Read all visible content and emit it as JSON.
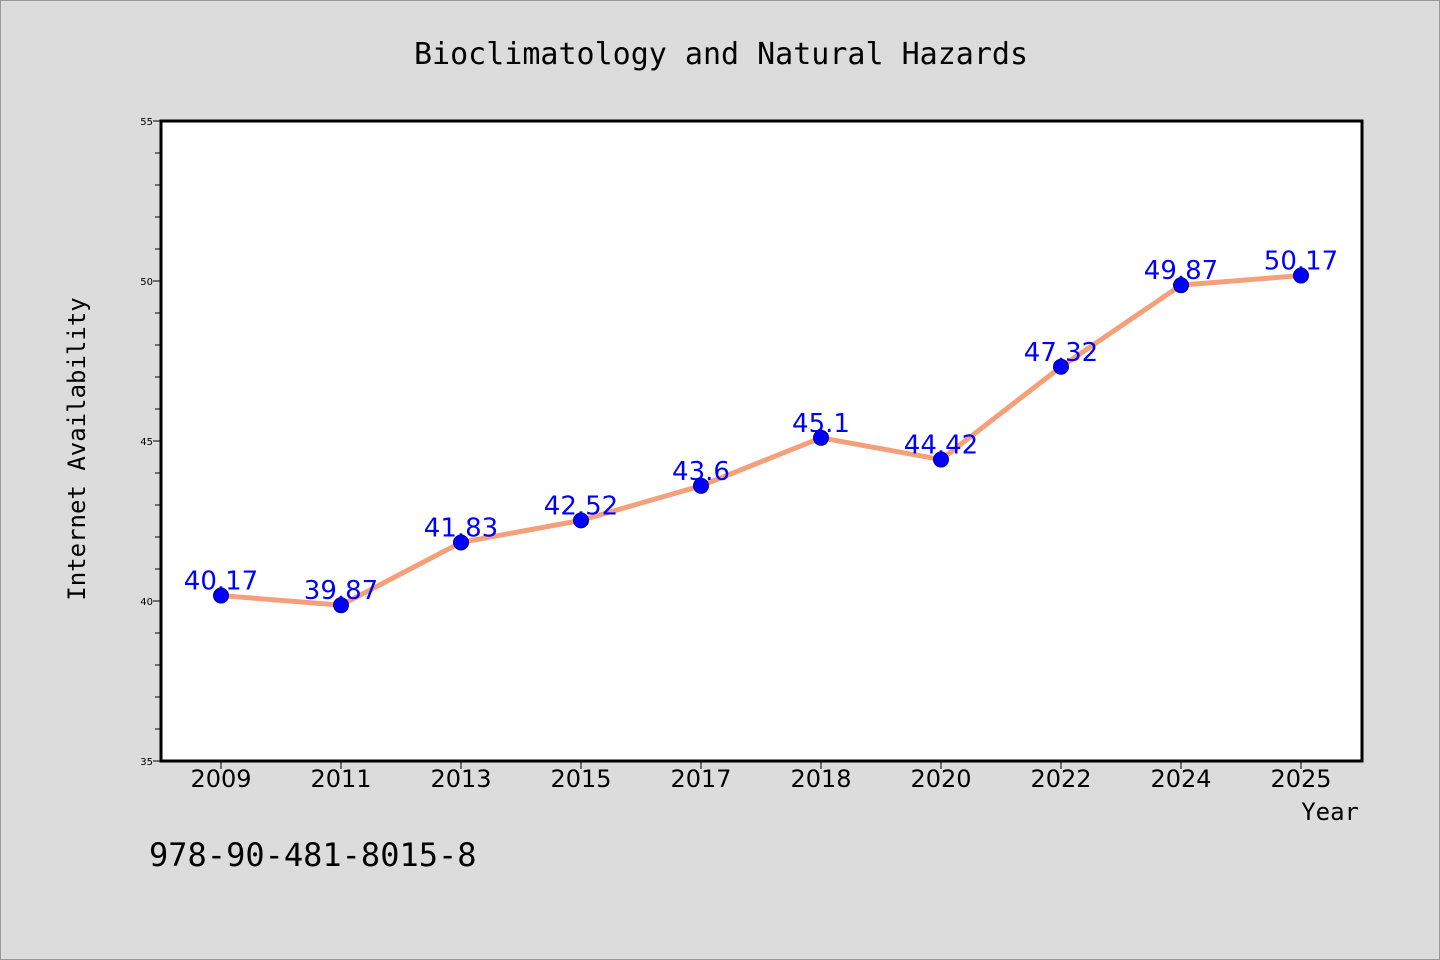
{
  "chart_data": {
    "type": "line",
    "title": "Bioclimatology and Natural Hazards",
    "xlabel": "Year",
    "ylabel": "Internet Availability",
    "categories": [
      "2009",
      "2011",
      "2013",
      "2015",
      "2017",
      "2018",
      "2020",
      "2022",
      "2024",
      "2025"
    ],
    "series": [
      {
        "values": [
          40.17,
          39.87,
          41.83,
          42.52,
          43.6,
          45.1,
          44.42,
          47.32,
          49.87,
          50.17
        ]
      }
    ],
    "data_labels": [
      "40.17",
      "39.87",
      "41.83",
      "42.52",
      "43.6",
      "45.1",
      "44.42",
      "47.32",
      "49.87",
      "50.17"
    ],
    "ylim": [
      35,
      55
    ],
    "y_ticks": [
      "35",
      "40",
      "45",
      "50",
      "55"
    ],
    "grid": false,
    "legend": "none",
    "colors": {
      "line": "#f4a07a",
      "marker": "#0000ff",
      "label": "#0000ff",
      "plot_background": "#ffffff",
      "figure_background": "#dcdcdc"
    }
  },
  "footer": {
    "code": "978-90-481-8015-8"
  }
}
